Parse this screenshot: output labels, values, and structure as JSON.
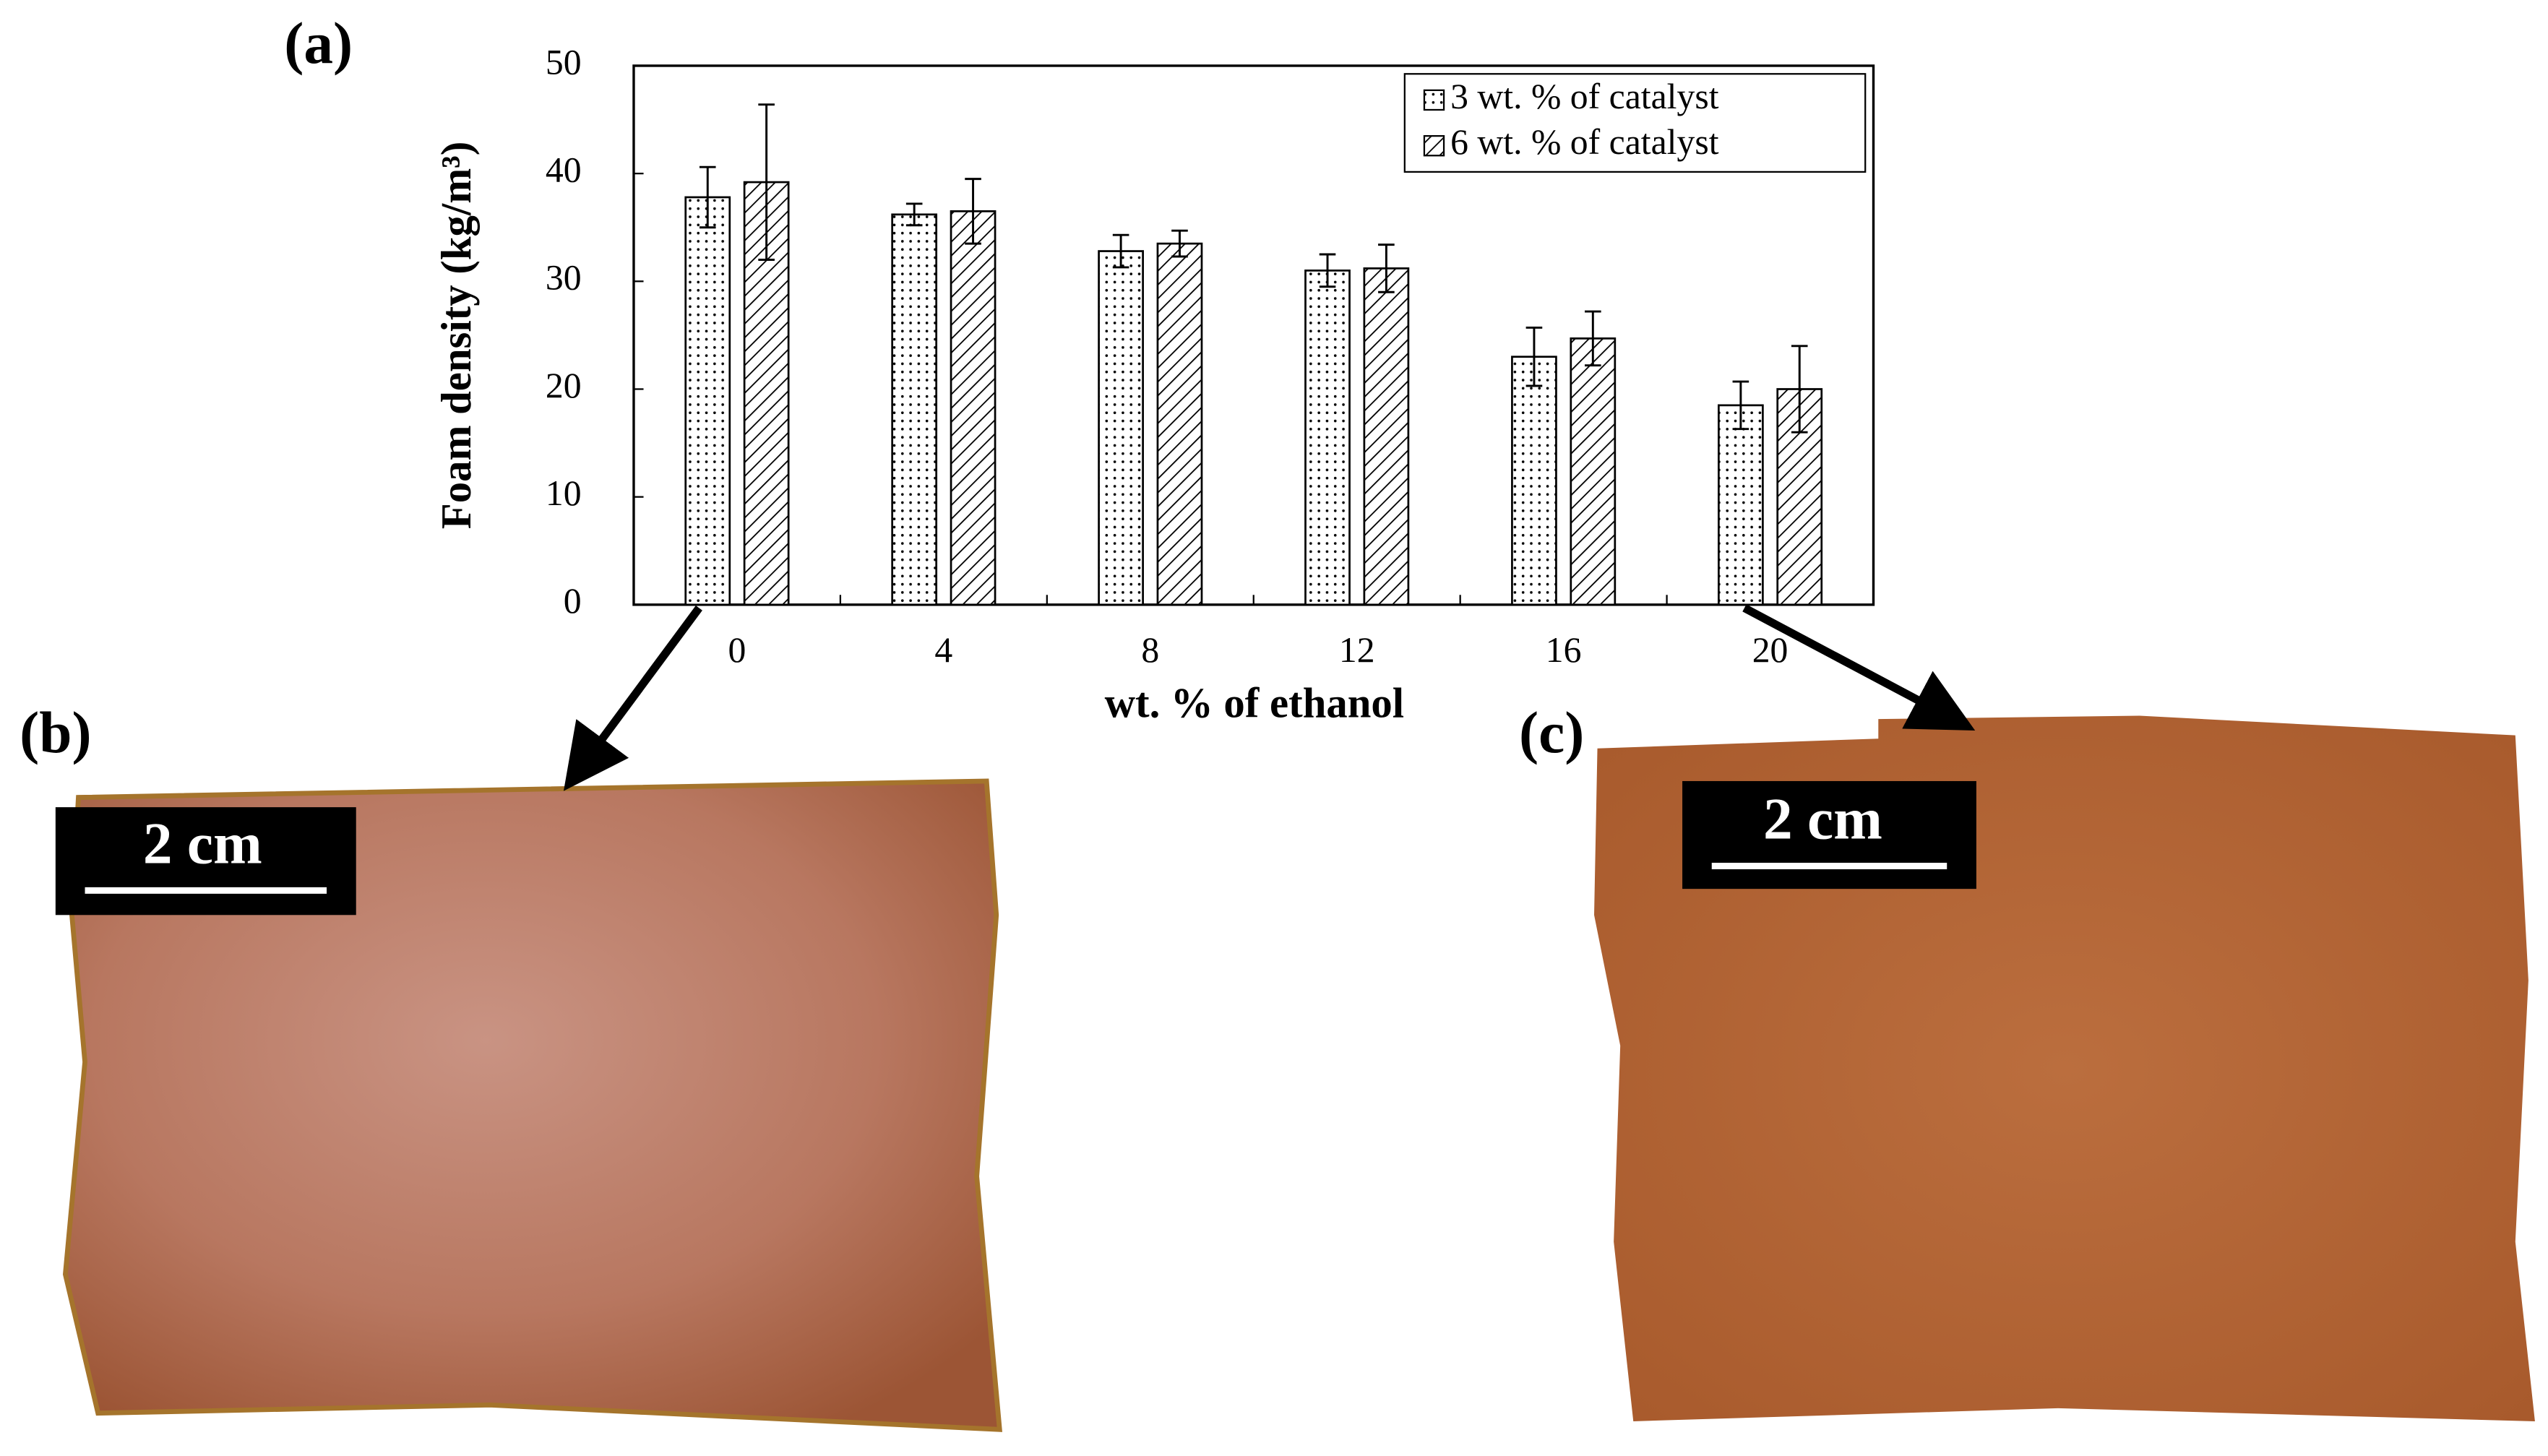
{
  "chart_data": {
    "type": "bar",
    "categories": [
      "0",
      "4",
      "8",
      "12",
      "16",
      "20"
    ],
    "series": [
      {
        "name": "3 wt. % of catalyst",
        "color": "#000000",
        "pattern": "dots",
        "values": [
          37.8,
          36.2,
          32.8,
          31.0,
          23.0,
          18.5
        ],
        "errors": [
          2.8,
          1.0,
          1.5,
          1.5,
          2.7,
          2.2
        ]
      },
      {
        "name": "6 wt. % of catalyst",
        "color": "#000000",
        "pattern": "hatch",
        "values": [
          39.2,
          36.5,
          33.5,
          31.2,
          24.7,
          20.0
        ],
        "errors": [
          7.2,
          3.0,
          1.2,
          2.2,
          2.5,
          4.0
        ]
      }
    ],
    "x_label": "wt. % of ethanol",
    "y_label": "Foam density (kg/m³)",
    "ylim": [
      0,
      50
    ],
    "yticks": [
      0,
      10,
      20,
      30,
      40,
      50
    ],
    "legend": "upper right",
    "grid": false
  },
  "panels": {
    "a": "(a)",
    "b": "(b)",
    "c": "(c)"
  },
  "scale_bars": [
    "2 cm",
    "2 cm"
  ]
}
